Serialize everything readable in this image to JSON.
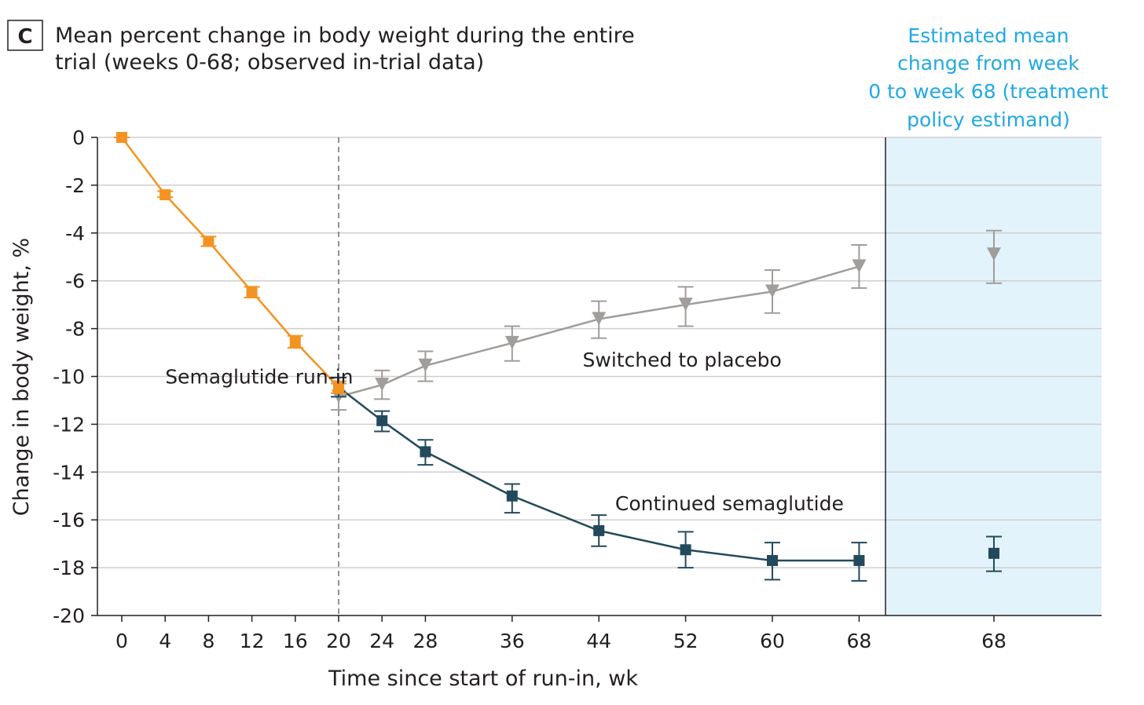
{
  "panel_label": "C",
  "title_lines": [
    "Mean percent change in body weight during the entire",
    "trial (weeks 0-68; observed in-trial data)"
  ],
  "estimand_heading_lines": [
    "Estimated mean",
    "change from week",
    "0 to week 68 (treatment",
    "policy estimand)"
  ],
  "colors": {
    "run_in": "#f39321",
    "placebo": "#a09d9a",
    "semaglutide": "#234a5c",
    "estimand_text": "#21a9e1",
    "estimand_bg": "#e2f3fb",
    "grid": "#cfcfcf",
    "axis": "#231f20"
  },
  "chart_data": {
    "type": "line",
    "xlabel": "Time since start of run-in, wk",
    "ylabel": "Change in body weight, %",
    "ylim": [
      -20,
      0
    ],
    "yticks": [
      0,
      -2,
      -4,
      -6,
      -8,
      -10,
      -12,
      -14,
      -16,
      -18,
      -20
    ],
    "xticks": [
      0,
      4,
      8,
      12,
      16,
      20,
      24,
      28,
      36,
      44,
      52,
      60,
      68
    ],
    "grid": true,
    "reference_line_week": 20,
    "series": [
      {
        "name": "Semaglutide run-in",
        "marker": "square",
        "color_key": "run_in",
        "points": [
          {
            "x": 0,
            "y": 0.0,
            "lo": 0.0,
            "hi": 0.0
          },
          {
            "x": 4,
            "y": -2.4,
            "lo": -2.5,
            "hi": -2.25
          },
          {
            "x": 8,
            "y": -4.35,
            "lo": -4.55,
            "hi": -4.15
          },
          {
            "x": 12,
            "y": -6.45,
            "lo": -6.7,
            "hi": -6.25
          },
          {
            "x": 16,
            "y": -8.55,
            "lo": -8.8,
            "hi": -8.3
          },
          {
            "x": 20,
            "y": -10.45,
            "lo": -10.7,
            "hi": -10.2
          }
        ]
      },
      {
        "name": "Switched to placebo",
        "marker": "triangle-down",
        "color_key": "placebo",
        "points": [
          {
            "x": 20,
            "y": -10.85,
            "lo": -11.4,
            "hi": -10.3
          },
          {
            "x": 24,
            "y": -10.35,
            "lo": -10.95,
            "hi": -9.75
          },
          {
            "x": 28,
            "y": -9.55,
            "lo": -10.2,
            "hi": -8.95
          },
          {
            "x": 36,
            "y": -8.6,
            "lo": -9.35,
            "hi": -7.9
          },
          {
            "x": 44,
            "y": -7.6,
            "lo": -8.4,
            "hi": -6.85
          },
          {
            "x": 52,
            "y": -7.0,
            "lo": -7.9,
            "hi": -6.25
          },
          {
            "x": 60,
            "y": -6.45,
            "lo": -7.35,
            "hi": -5.55
          },
          {
            "x": 68,
            "y": -5.4,
            "lo": -6.3,
            "hi": -4.5
          }
        ]
      },
      {
        "name": "Continued semaglutide",
        "marker": "square",
        "color_key": "semaglutide",
        "points": [
          {
            "x": 20,
            "y": -10.45,
            "lo": -10.85,
            "hi": -10.05
          },
          {
            "x": 24,
            "y": -11.85,
            "lo": -12.3,
            "hi": -11.45
          },
          {
            "x": 28,
            "y": -13.15,
            "lo": -13.7,
            "hi": -12.65
          },
          {
            "x": 36,
            "y": -15.0,
            "lo": -15.7,
            "hi": -14.5
          },
          {
            "x": 44,
            "y": -16.45,
            "lo": -17.1,
            "hi": -15.8
          },
          {
            "x": 52,
            "y": -17.25,
            "lo": -18.0,
            "hi": -16.5
          },
          {
            "x": 60,
            "y": -17.7,
            "lo": -18.5,
            "hi": -16.95
          },
          {
            "x": 68,
            "y": -17.7,
            "lo": -18.55,
            "hi": -16.95
          }
        ]
      }
    ],
    "series_labels": [
      {
        "text": "Semaglutide run-in",
        "x": 4,
        "y": -10
      },
      {
        "text": "Switched to placebo",
        "x": 42.5,
        "y": -9.3
      },
      {
        "text": "Continued semaglutide",
        "x": 45.5,
        "y": -15.3
      }
    ],
    "estimand": {
      "x_label": "68",
      "points": [
        {
          "series": "Switched to placebo",
          "marker": "triangle-down",
          "color_key": "placebo",
          "y": -4.9,
          "lo": -6.1,
          "hi": -3.9
        },
        {
          "series": "Continued semaglutide",
          "marker": "square",
          "color_key": "semaglutide",
          "y": -17.4,
          "lo": -18.15,
          "hi": -16.7
        }
      ]
    }
  }
}
